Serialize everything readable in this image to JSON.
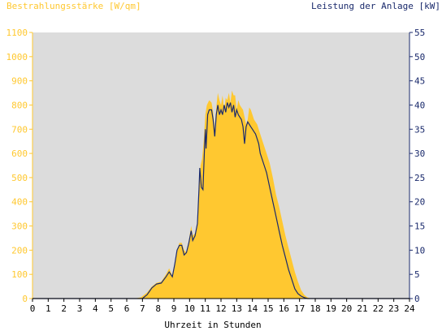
{
  "chart_data": {
    "type": "area",
    "left_axis_label": "Bestrahlungsstärke [W/qm]",
    "right_axis_label": "Leistung der Anlage [kW]",
    "xlabel": "Uhrzeit in Stunden",
    "xlim": [
      0,
      24
    ],
    "x_ticks": [
      "0",
      "1",
      "2",
      "3",
      "4",
      "5",
      "6",
      "7",
      "8",
      "9",
      "10",
      "11",
      "12",
      "13",
      "14",
      "15",
      "16",
      "17",
      "18",
      "19",
      "20",
      "21",
      "22",
      "23",
      "24"
    ],
    "ylim_left": [
      0,
      1100
    ],
    "y_ticks_left": [
      "0",
      "100",
      "200",
      "300",
      "400",
      "500",
      "600",
      "700",
      "800",
      "900",
      "1000",
      "1100"
    ],
    "ylim_right": [
      0,
      55
    ],
    "y_ticks_right": [
      "0",
      "5",
      "10",
      "15",
      "20",
      "25",
      "30",
      "35",
      "40",
      "45",
      "50",
      "55"
    ],
    "grid": false,
    "colors": {
      "irradiance": "#ffc830",
      "power": "#1a2a6c",
      "plot_bg": "#dcdcdc",
      "left_axis": "#ffc830",
      "right_axis": "#1a2a6c"
    },
    "series": [
      {
        "name": "Bestrahlungsstärke [W/qm]",
        "axis": "left",
        "x": [
          0,
          6.5,
          6.9,
          7.3,
          7.6,
          7.9,
          8.2,
          8.5,
          8.7,
          8.9,
          9.05,
          9.2,
          9.35,
          9.5,
          9.65,
          9.8,
          9.95,
          10.1,
          10.2,
          10.35,
          10.5,
          10.6,
          10.7,
          10.8,
          10.9,
          11.0,
          11.1,
          11.25,
          11.4,
          11.5,
          11.6,
          11.7,
          11.8,
          11.9,
          12.0,
          12.1,
          12.2,
          12.3,
          12.4,
          12.5,
          12.6,
          12.7,
          12.8,
          12.9,
          13.0,
          13.1,
          13.2,
          13.3,
          13.4,
          13.5,
          13.6,
          13.7,
          13.8,
          13.9,
          14.0,
          14.1,
          14.2,
          14.3,
          14.4,
          14.5,
          14.7,
          14.9,
          15.1,
          15.3,
          15.5,
          15.7,
          15.9,
          16.1,
          16.3,
          16.5,
          16.7,
          16.9,
          17.1,
          17.3,
          17.5,
          17.7,
          17.9,
          18.1,
          18.3,
          18.5,
          24
        ],
        "values": [
          0,
          0,
          5,
          25,
          50,
          65,
          70,
          100,
          125,
          95,
          130,
          200,
          230,
          230,
          200,
          190,
          240,
          300,
          260,
          270,
          300,
          450,
          550,
          580,
          650,
          760,
          800,
          820,
          810,
          770,
          700,
          790,
          850,
          820,
          800,
          840,
          780,
          830,
          820,
          850,
          810,
          860,
          840,
          840,
          780,
          820,
          800,
          790,
          780,
          750,
          720,
          740,
          790,
          780,
          760,
          740,
          730,
          720,
          700,
          680,
          640,
          600,
          560,
          500,
          430,
          380,
          320,
          260,
          210,
          160,
          110,
          70,
          35,
          15,
          5,
          0,
          0,
          0,
          0,
          0,
          0
        ]
      },
      {
        "name": "Leistung der Anlage [kW]",
        "axis": "right",
        "x": [
          0,
          7.0,
          7.3,
          7.6,
          7.9,
          8.2,
          8.5,
          8.7,
          8.9,
          9.05,
          9.2,
          9.35,
          9.5,
          9.65,
          9.8,
          9.95,
          10.1,
          10.2,
          10.35,
          10.5,
          10.6,
          10.65,
          10.75,
          10.85,
          10.95,
          11.0,
          11.05,
          11.15,
          11.25,
          11.4,
          11.5,
          11.6,
          11.7,
          11.8,
          11.9,
          12.0,
          12.1,
          12.2,
          12.3,
          12.4,
          12.5,
          12.6,
          12.7,
          12.8,
          12.9,
          13.0,
          13.1,
          13.2,
          13.3,
          13.4,
          13.5,
          13.6,
          13.7,
          13.8,
          13.9,
          14.0,
          14.1,
          14.2,
          14.3,
          14.4,
          14.5,
          14.7,
          14.9,
          15.1,
          15.3,
          15.5,
          15.7,
          15.9,
          16.1,
          16.3,
          16.5,
          16.7,
          16.9,
          17.1,
          17.3,
          17.5,
          17.7,
          17.9,
          18.1,
          18.3,
          18.5,
          24
        ],
        "values": [
          0,
          0,
          0.8,
          2.2,
          3.0,
          3.2,
          4.5,
          5.5,
          4.5,
          7.0,
          10.0,
          11.0,
          11.0,
          9.0,
          9.5,
          11.5,
          14.0,
          12.0,
          13.0,
          15.5,
          22.5,
          27.0,
          23.0,
          22.5,
          31.0,
          35.0,
          31.0,
          38.0,
          39.0,
          39.0,
          37.0,
          33.5,
          38.0,
          40.0,
          38.0,
          39.0,
          38.0,
          40.0,
          38.5,
          40.5,
          39.5,
          40.5,
          38.5,
          40.0,
          37.5,
          39.0,
          38.0,
          37.5,
          37.0,
          35.5,
          32.0,
          35.5,
          36.5,
          36.0,
          35.5,
          35.0,
          34.5,
          34.0,
          33.0,
          32.0,
          30.0,
          28.0,
          26.0,
          23.0,
          20.0,
          17.0,
          14.0,
          11.0,
          8.5,
          6.0,
          4.0,
          2.0,
          1.0,
          0.5,
          0.2,
          0,
          0,
          0,
          0,
          0,
          0,
          0
        ]
      }
    ]
  }
}
